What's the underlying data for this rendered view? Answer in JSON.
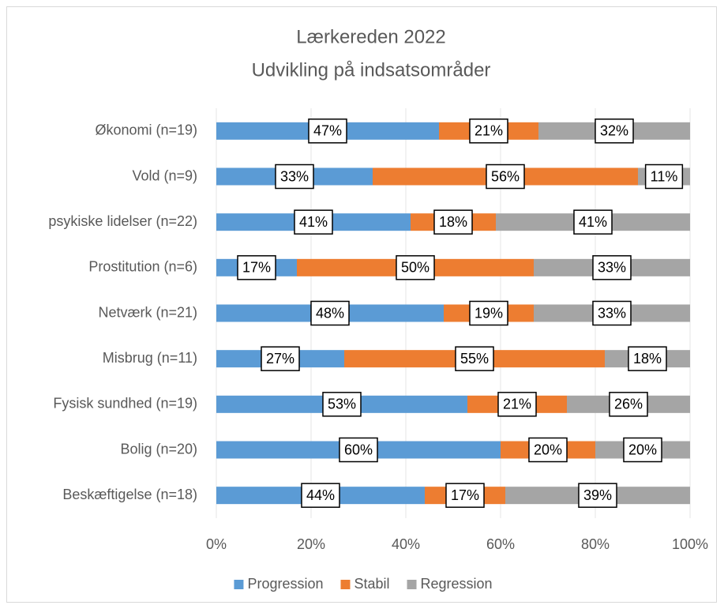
{
  "chart_data": {
    "type": "bar",
    "orientation": "horizontal",
    "stacked": true,
    "title": "Lærkereden 2022",
    "subtitle": "Udvikling på indsatsområder",
    "categories": [
      "Økonomi (n=19)",
      "Vold (n=9)",
      "psykiske lidelser (n=22)",
      "Prostitution (n=6)",
      "Netværk (n=21)",
      "Misbrug (n=11)",
      "Fysisk sundhed (n=19)",
      "Bolig (n=20)",
      "Beskæftigelse (n=18)"
    ],
    "series": [
      {
        "name": "Progression",
        "color": "#5b9bd5",
        "values": [
          47,
          33,
          41,
          17,
          48,
          27,
          53,
          60,
          44
        ],
        "value_labels": [
          "47%",
          "33%",
          "41%",
          "17%",
          "48%",
          "27%",
          "53%",
          "60%",
          "44%"
        ]
      },
      {
        "name": "Stabil",
        "color": "#ed7d31",
        "values": [
          21,
          56,
          18,
          50,
          19,
          55,
          21,
          20,
          17
        ],
        "value_labels": [
          "21%",
          "56%",
          "18%",
          "50%",
          "19%",
          "55%",
          "21%",
          "20%",
          "17%"
        ]
      },
      {
        "name": "Regression",
        "color": "#a5a5a5",
        "values": [
          32,
          11,
          41,
          33,
          33,
          18,
          26,
          20,
          39
        ],
        "value_labels": [
          "32%",
          "11%",
          "41%",
          "33%",
          "33%",
          "18%",
          "26%",
          "20%",
          "39%"
        ]
      }
    ],
    "xlim": [
      0,
      100
    ],
    "xticks": [
      {
        "value": 0,
        "label": "0%"
      },
      {
        "value": 20,
        "label": "20%"
      },
      {
        "value": 40,
        "label": "40%"
      },
      {
        "value": 60,
        "label": "60%"
      },
      {
        "value": 80,
        "label": "80%"
      },
      {
        "value": 100,
        "label": "100%"
      }
    ],
    "legend": "bottom"
  }
}
